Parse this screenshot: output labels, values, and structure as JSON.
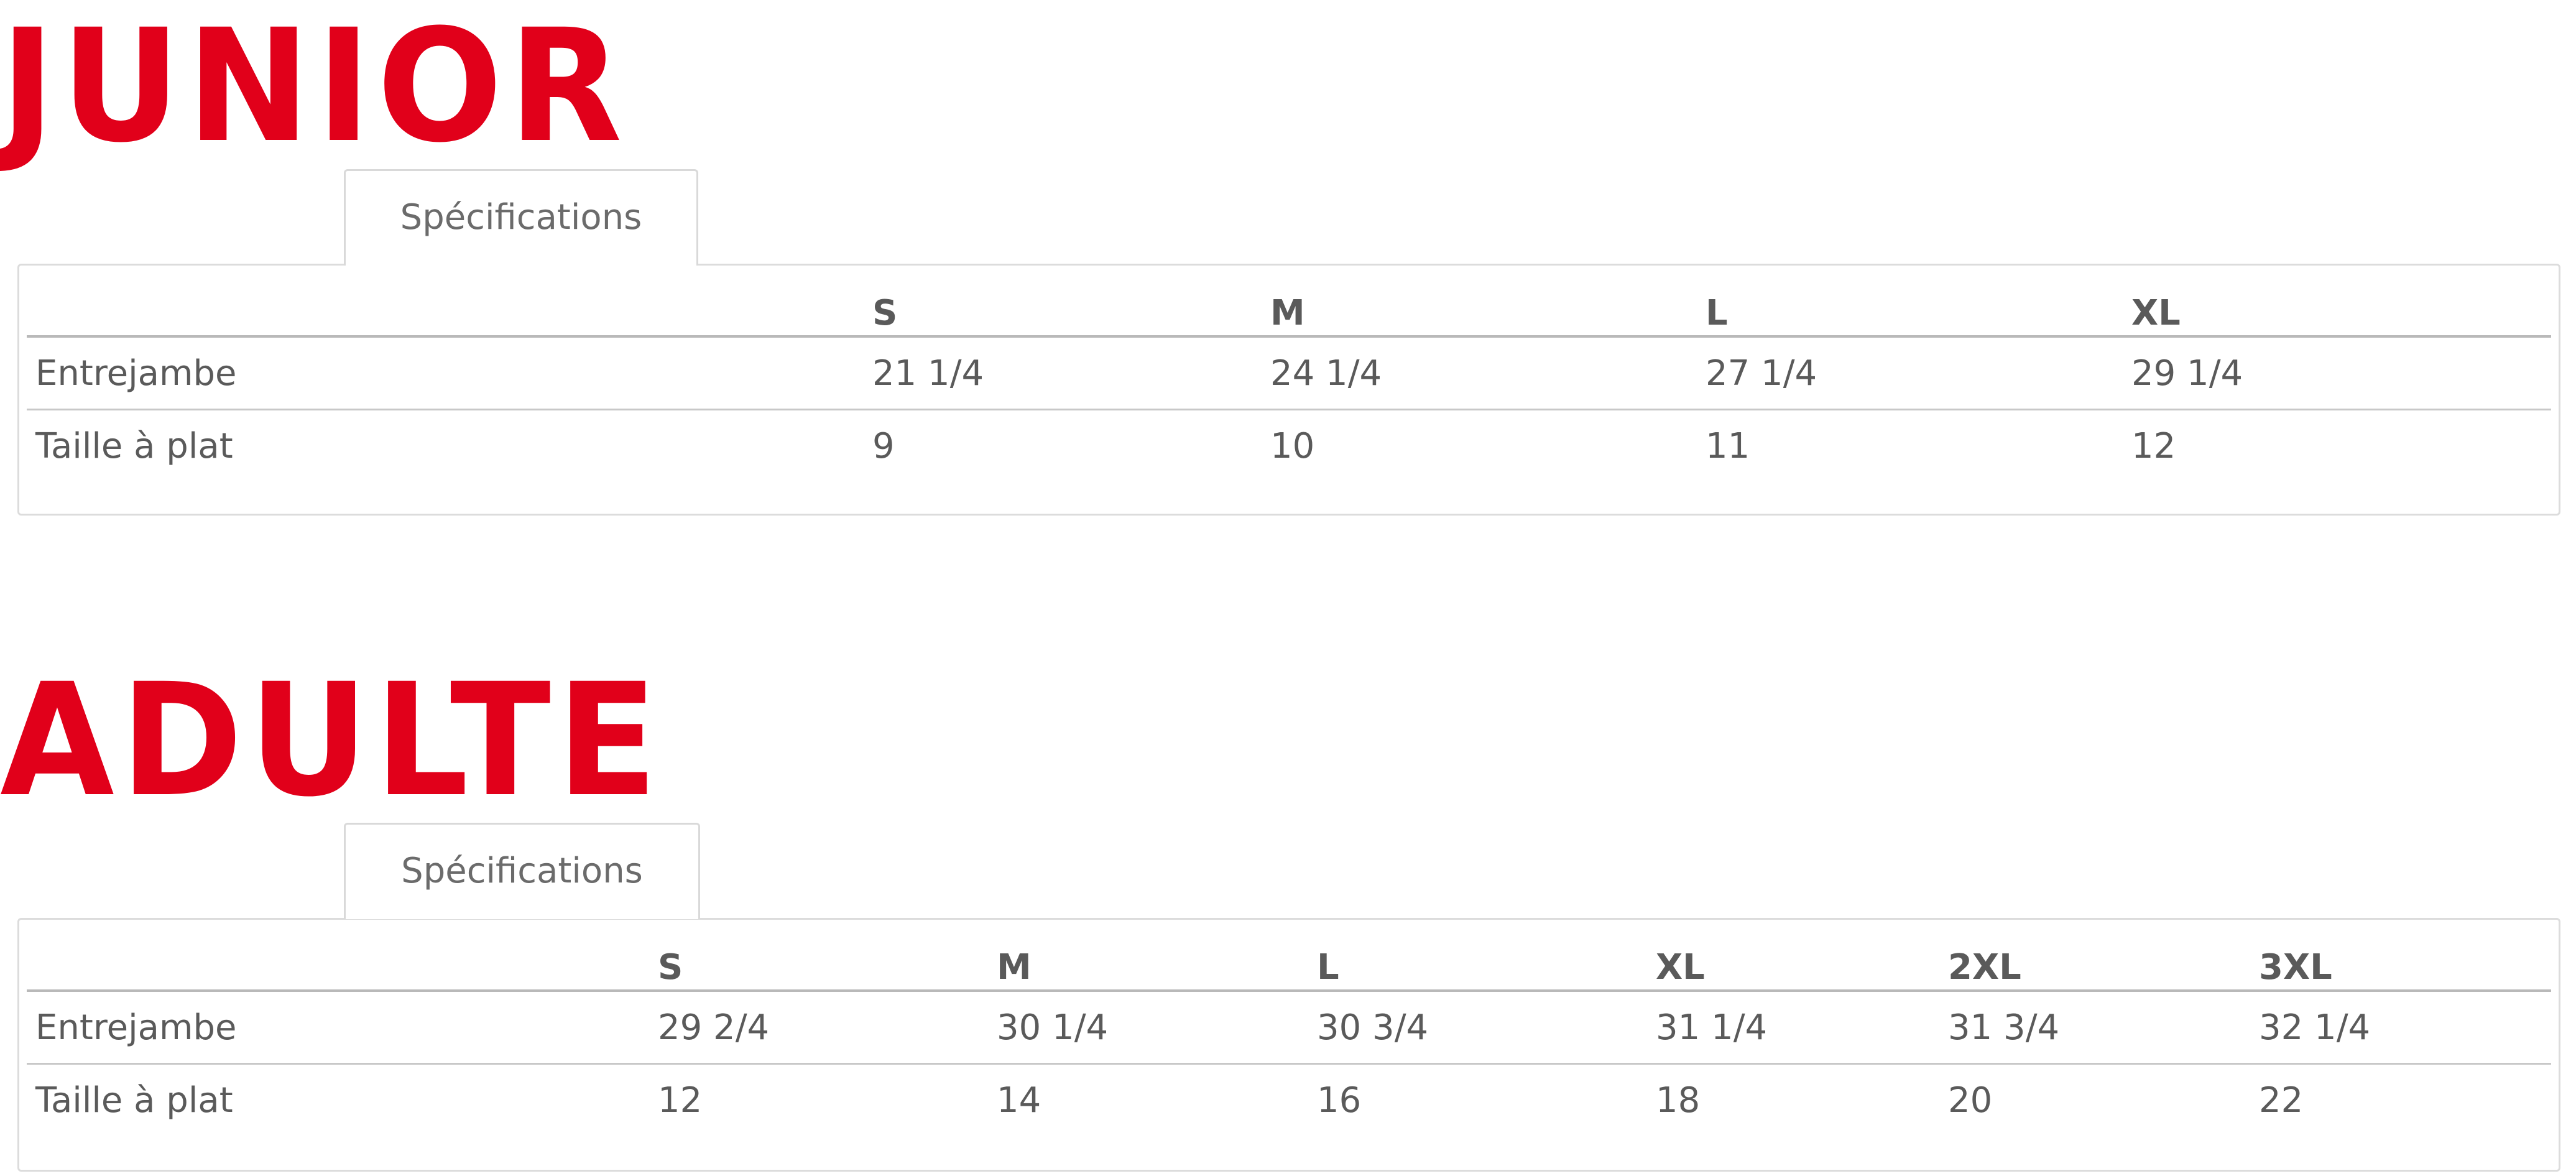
{
  "junior": {
    "title": "JUNIOR",
    "tab_label": "Spécifications",
    "headers": [
      "",
      "S",
      "M",
      "L",
      "XL"
    ],
    "rows": [
      {
        "label": "Entrejambe",
        "values": [
          "21 1/4",
          "24 1/4",
          "27 1/4",
          "29 1/4"
        ]
      },
      {
        "label": "Taille à plat",
        "values": [
          "9",
          "10",
          "11",
          "12"
        ]
      }
    ]
  },
  "adulte": {
    "title": "ADULTE",
    "tab_label": "Spécifications",
    "headers": [
      "",
      "S",
      "M",
      "L",
      "XL",
      "2XL",
      "3XL"
    ],
    "rows": [
      {
        "label": "Entrejambe",
        "values": [
          "29 2/4",
          "30 1/4",
          "30 3/4",
          "31 1/4",
          "31 3/4",
          "32 1/4"
        ]
      },
      {
        "label": "Taille à plat",
        "values": [
          "12",
          "14",
          "16",
          "18",
          "20",
          "22"
        ]
      }
    ]
  },
  "colors": {
    "title_red": "#e1001a",
    "text_gray": "#5a5a5a",
    "border_gray": "#dcdcdc"
  }
}
